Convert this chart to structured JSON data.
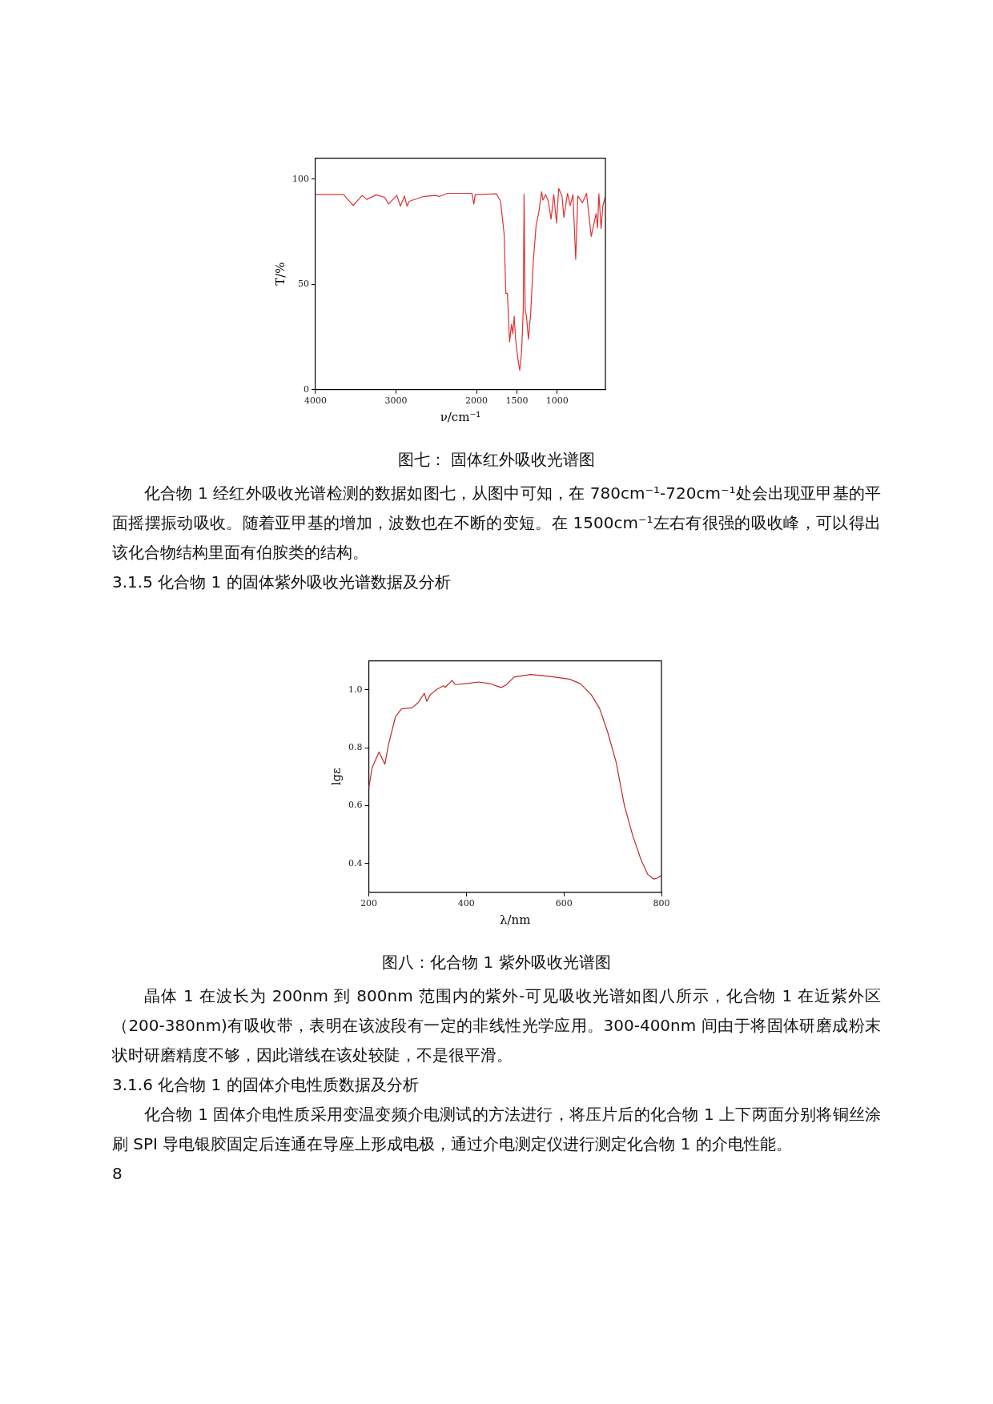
{
  "chart_data": [
    {
      "type": "line",
      "title": "图七：  固体红外吸收光谱图",
      "xlabel": "ν/cm⁻¹",
      "ylabel": "T/%",
      "xlim": [
        4000,
        400
      ],
      "xticks": [
        4000,
        3000,
        2000,
        1500,
        1000
      ],
      "ylim": [
        0,
        110
      ],
      "yticks": [
        0,
        50,
        100
      ],
      "grid": false,
      "legend": false,
      "marker": "none",
      "line_style": "solid",
      "series": [
        {
          "color": "#e03030",
          "x": [
            4000,
            3651,
            3532,
            3420,
            3363,
            3244,
            3142,
            3092,
            2990,
            2946,
            2895,
            2864,
            2837,
            2668,
            2515,
            2464,
            2363,
            2058,
            2034,
            2017,
            1753,
            1702,
            1658,
            1637,
            1617,
            1590,
            1566,
            1549,
            1532,
            1515,
            1488,
            1464,
            1441,
            1420,
            1410,
            1397,
            1380,
            1356,
            1329,
            1295,
            1261,
            1227,
            1193,
            1176,
            1142,
            1108,
            1075,
            1041,
            1007,
            980,
            939,
            915,
            871,
            837,
            803,
            769,
            742,
            685,
            634,
            576,
            515,
            498,
            481,
            454,
            431,
            403
          ],
          "values": [
            92.7,
            92.7,
            87.5,
            92.3,
            90.4,
            92.6,
            91.4,
            88.2,
            92.3,
            87.2,
            92,
            87.2,
            89.5,
            91.7,
            92.3,
            91.8,
            93.3,
            93.3,
            88.2,
            92.7,
            93.1,
            89.5,
            74,
            45.8,
            45.8,
            22.7,
            31,
            26.6,
            34.9,
            24,
            15,
            9.2,
            17.6,
            38,
            92.9,
            38,
            34.9,
            24,
            35.6,
            61.2,
            77.9,
            84.3,
            94,
            90.1,
            92.7,
            89.5,
            81.1,
            92.7,
            79.2,
            95.6,
            92,
            81.8,
            93.3,
            87.5,
            92.7,
            61.9,
            92,
            88.8,
            93.3,
            72.8,
            83.7,
            76.9,
            93.1,
            76.6,
            87.5,
            91.4
          ]
        }
      ],
      "annotations": [
        "化合物 1 经红外吸收光谱检测的数据如图七，从图中可知，在 780cm⁻¹-720cm⁻¹处会出现亚甲基的平面摇摆振动吸收。随着亚甲基的增加，波数也在不断的变短。在 1500cm⁻¹左右有很强的吸收峰，可以得出该化合物结构里面有伯胺类的结构。",
        "3.1.5    化合物 1 的固体紫外吸收光谱数据及分析"
      ]
    },
    {
      "type": "line",
      "title": "图八：化合物 1 紫外吸收光谱图",
      "xlabel": "λ/nm",
      "ylabel": "lgε",
      "xlim": [
        200,
        800
      ],
      "xticks": [
        200,
        400,
        600,
        800
      ],
      "ylim": [
        0.3,
        1.1
      ],
      "yticks": [
        {
          "value": 0.4,
          "label": "0.4"
        },
        {
          "value": 0.6,
          "label": "0.6"
        },
        {
          "value": 0.8,
          "label": "0.8"
        },
        {
          "value": 1.0,
          "label": "1.0"
        }
      ],
      "grid": false,
      "legend": false,
      "marker": "none",
      "line_style": "solid",
      "series": [
        {
          "color": "#c0282e",
          "x": [
            200,
            207,
            221,
            233,
            241,
            255,
            267,
            289,
            301,
            314,
            319,
            326,
            340,
            353,
            357,
            371,
            377,
            402,
            425,
            447,
            471,
            481,
            498,
            532,
            572,
            611,
            634,
            656,
            673,
            690,
            707,
            724,
            741,
            758,
            772,
            784,
            792,
            800
          ],
          "values": [
            0.661,
            0.731,
            0.785,
            0.743,
            0.815,
            0.908,
            0.934,
            0.938,
            0.955,
            0.988,
            0.96,
            0.983,
            1.002,
            1.014,
            1.009,
            1.032,
            1.018,
            1.022,
            1.027,
            1.022,
            1.008,
            1.016,
            1.044,
            1.053,
            1.046,
            1.037,
            1.021,
            0.983,
            0.936,
            0.852,
            0.75,
            0.6,
            0.497,
            0.413,
            0.362,
            0.346,
            0.35,
            0.359
          ]
        }
      ],
      "annotations": [
        "晶体 1 在波长为 200nm 到 800nm 范围内的紫外-可见吸收光谱如图八所示，化合物 1 在近紫外区（200-380nm)有吸收带，表明在该波段有一定的非线性光学应用。300-400nm 间由于将固体研磨成粉末状时研磨精度不够，因此谱线在该处较陡，不是很平滑。",
        "3.1.6    化合物 1 的固体介电性质数据及分析",
        "化合物 1 固体介电性质采用变温变频介电测试的方法进行，将压片后的化合物 1 上下两面分别将铜丝涂刷 SPI 导电银胶固定后连通在导座上形成电极，通过介电测定仪进行测定化合物 1 的介电性能。",
        "8"
      ]
    }
  ]
}
